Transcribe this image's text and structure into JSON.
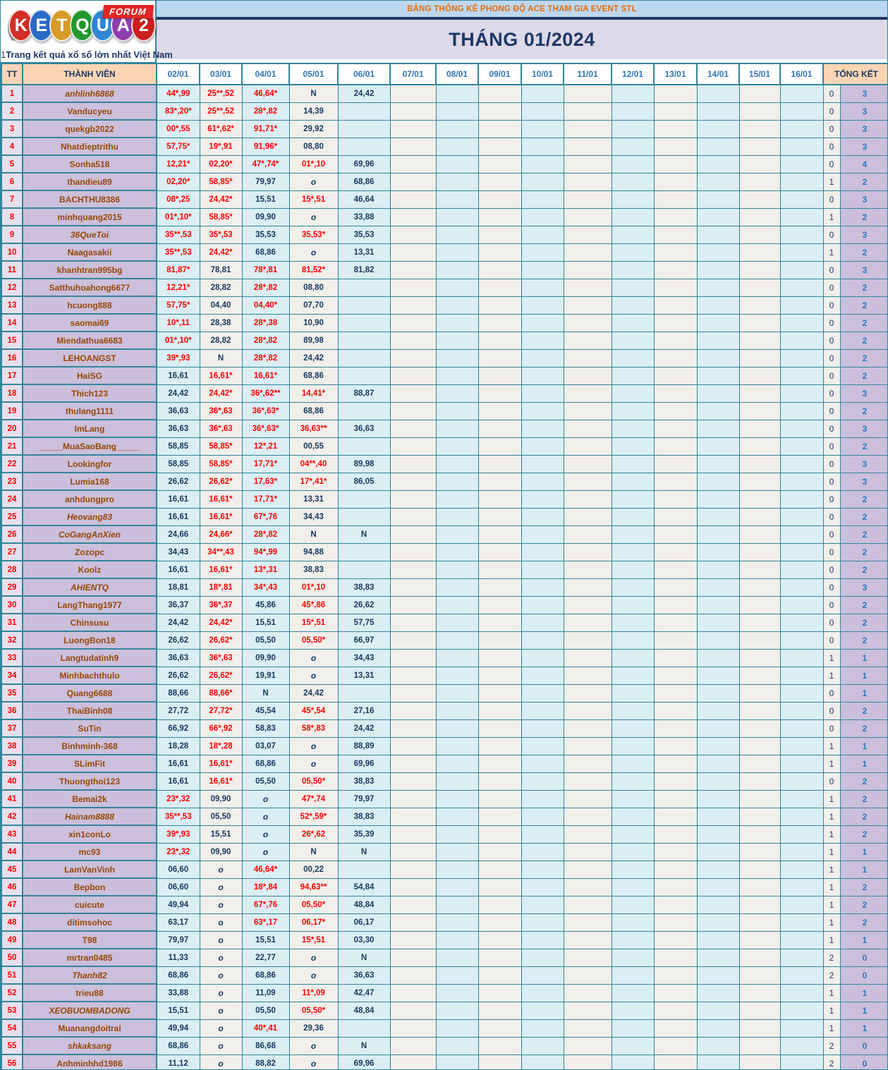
{
  "logo": {
    "letters": [
      {
        "ch": "K",
        "color": "#d22d26"
      },
      {
        "ch": "E",
        "color": "#2b6bc8"
      },
      {
        "ch": "T",
        "color": "#d79a28"
      },
      {
        "ch": "Q",
        "color": "#23982f"
      },
      {
        "ch": "U",
        "color": "#2f86d2"
      },
      {
        "ch": "A",
        "color": "#8e3fae"
      },
      {
        "ch": "2",
        "color": "#cc1f1f"
      }
    ],
    "badge": "FORUM",
    "tagline_prefix": "1",
    "tagline": "Trang kết quả xổ số lớn nhất Việt Nam"
  },
  "header": {
    "banner_title": "BẢNG THỐNG KÊ PHONG ĐỘ ACE THAM GIA EVENT STL",
    "month_title": "THÁNG 01/2024"
  },
  "columns": {
    "tt_label": "TT",
    "member_label": "THÀNH VIÊN",
    "dates": [
      "02/01",
      "03/01",
      "04/01",
      "05/01",
      "06/01",
      "07/01",
      "08/01",
      "09/01",
      "10/01",
      "11/01",
      "12/01",
      "13/01",
      "14/01",
      "15/01",
      "16/01"
    ],
    "total_label": "TỔNG KẾT"
  },
  "colors": {
    "border_teal": "#31859C",
    "banner_bg": "#BDD7EE",
    "banner_text": "#E36C0A",
    "navy": "#17375E",
    "red": "#FF0000",
    "name_bg": "#CBBFDB",
    "tt_bg": "#E5E0EC",
    "cell_blue": "#DAEEF3",
    "cell_ivory": "#F0EFEA",
    "peach": "#FCD5B4",
    "member_text": "#974706",
    "total_blue": "#2E75B6"
  },
  "rows": [
    [
      "1",
      "anhlinh6868",
      1,
      [
        "r|44*,99",
        "r|25**,52",
        "r|46,64*",
        "d|N",
        "d|24,42"
      ],
      [
        "0",
        "3"
      ]
    ],
    [
      "2",
      "Vanducyeu",
      0,
      [
        "r|83*,20*",
        "r|25**,52",
        "r|28*,82",
        "d|14,39",
        ""
      ],
      [
        "0",
        "3"
      ]
    ],
    [
      "3",
      "quekgb2022",
      0,
      [
        "r|00*,55",
        "r|61*,62*",
        "r|91,71*",
        "d|29,92",
        ""
      ],
      [
        "0",
        "3"
      ]
    ],
    [
      "4",
      "Nhatdieptrithu",
      0,
      [
        "r|57,75*",
        "r|19*,91",
        "r|91,96*",
        "d|08,80",
        ""
      ],
      [
        "0",
        "3"
      ]
    ],
    [
      "5",
      "Sonha518",
      0,
      [
        "r|12,21*",
        "r|02,20*",
        "r|47*,74*",
        "r|01*,10",
        "d|69,96"
      ],
      [
        "0",
        "4"
      ]
    ],
    [
      "6",
      "thandieu89",
      0,
      [
        "r|02,20*",
        "r|58,85*",
        "d|79,97",
        "i|o",
        "d|68,86"
      ],
      [
        "1",
        "2"
      ]
    ],
    [
      "7",
      "BACHTHU8386",
      0,
      [
        "r|08*,25",
        "r|24,42*",
        "d|15,51",
        "r|15*,51",
        "d|46,64"
      ],
      [
        "0",
        "3"
      ]
    ],
    [
      "8",
      "minhquang2015",
      0,
      [
        "r|01*,10*",
        "r|58,85*",
        "d|09,90",
        "i|o",
        "d|33,88"
      ],
      [
        "1",
        "2"
      ]
    ],
    [
      "9",
      "36QueToi",
      1,
      [
        "r|35**,53",
        "r|35*,53",
        "d|35,53",
        "r|35,53*",
        "d|35,53"
      ],
      [
        "0",
        "3"
      ]
    ],
    [
      "10",
      "Naagasakii",
      0,
      [
        "r|35**,53",
        "r|24,42*",
        "d|68,86",
        "i|o",
        "d|13,31"
      ],
      [
        "1",
        "2"
      ]
    ],
    [
      "11",
      "khanhtran995bg",
      0,
      [
        "r|81,87*",
        "d|78,81",
        "r|78*,81",
        "r|81,52*",
        "d|81,82"
      ],
      [
        "0",
        "3"
      ]
    ],
    [
      "12",
      "Satthuhoahong6677",
      0,
      [
        "r|12,21*",
        "d|28,82",
        "r|28*,82",
        "d|08,80",
        ""
      ],
      [
        "0",
        "2"
      ]
    ],
    [
      "13",
      "hcuong888",
      0,
      [
        "r|57,75*",
        "d|04,40",
        "r|04,40*",
        "d|07,70",
        ""
      ],
      [
        "0",
        "2"
      ]
    ],
    [
      "14",
      "saomai69",
      0,
      [
        "r|10*,11",
        "d|28,38",
        "r|28*,38",
        "d|10,90",
        ""
      ],
      [
        "0",
        "2"
      ]
    ],
    [
      "15",
      "Miendathua6683",
      0,
      [
        "r|01*,10*",
        "d|28,82",
        "r|28*,82",
        "d|89,98",
        ""
      ],
      [
        "0",
        "2"
      ]
    ],
    [
      "16",
      "LEHOANGST",
      0,
      [
        "r|39*,93",
        "d|N",
        "r|28*,82",
        "d|24,42",
        ""
      ],
      [
        "0",
        "2"
      ]
    ],
    [
      "17",
      "HaiSG",
      0,
      [
        "d|16,61",
        "r|16,61*",
        "r|16,61*",
        "d|68,86",
        ""
      ],
      [
        "0",
        "2"
      ]
    ],
    [
      "18",
      "Thich123",
      0,
      [
        "d|24,42",
        "r|24,42*",
        "r|36*,62**",
        "r|14,41*",
        "d|88,87"
      ],
      [
        "0",
        "3"
      ]
    ],
    [
      "19",
      "thulang1111",
      0,
      [
        "d|36,63",
        "r|36*,63",
        "r|36*,63*",
        "d|68,86",
        ""
      ],
      [
        "0",
        "2"
      ]
    ],
    [
      "20",
      "ImLang",
      0,
      [
        "d|36,63",
        "r|36*,63",
        "r|36*,63*",
        "r|36,63**",
        "d|36,63"
      ],
      [
        "0",
        "3"
      ]
    ],
    [
      "21",
      "_____MuaSaoBang_____",
      0,
      [
        "d|58,85",
        "r|58,85*",
        "r|12*,21",
        "d|00,55",
        ""
      ],
      [
        "0",
        "2"
      ]
    ],
    [
      "22",
      "Lookingfor",
      0,
      [
        "d|58,85",
        "r|58,85*",
        "r|17,71*",
        "r|04**,40",
        "d|89,98"
      ],
      [
        "0",
        "3"
      ]
    ],
    [
      "23",
      "Lumia168",
      0,
      [
        "d|26,62",
        "r|26,62*",
        "r|17,63*",
        "r|17*,41*",
        "d|86,05"
      ],
      [
        "0",
        "3"
      ]
    ],
    [
      "24",
      "anhdungpro",
      0,
      [
        "d|16,61",
        "r|16,61*",
        "r|17,71*",
        "d|13,31",
        ""
      ],
      [
        "0",
        "2"
      ]
    ],
    [
      "25",
      "Heovang83",
      1,
      [
        "d|16,61",
        "r|16,61*",
        "r|67*,76",
        "d|34,43",
        ""
      ],
      [
        "0",
        "2"
      ]
    ],
    [
      "26",
      "CoGangAnXien",
      1,
      [
        "d|24,66",
        "r|24,66*",
        "r|28*,82",
        "d|N",
        "d|N"
      ],
      [
        "0",
        "2"
      ]
    ],
    [
      "27",
      "Zozopc",
      0,
      [
        "d|34,43",
        "r|34**,43",
        "r|94*,99",
        "d|94,88",
        ""
      ],
      [
        "0",
        "2"
      ]
    ],
    [
      "28",
      "Koolz",
      0,
      [
        "d|16,61",
        "r|16,61*",
        "r|13*,31",
        "d|38,83",
        ""
      ],
      [
        "0",
        "2"
      ]
    ],
    [
      "29",
      "AHIENTQ",
      1,
      [
        "d|18,81",
        "r|18*,81",
        "r|34*,43",
        "r|01*,10",
        "d|38,83"
      ],
      [
        "0",
        "3"
      ]
    ],
    [
      "30",
      "LangThang1977",
      0,
      [
        "d|36,37",
        "r|36*,37",
        "d|45,86",
        "r|45*,86",
        "d|26,62"
      ],
      [
        "0",
        "2"
      ]
    ],
    [
      "31",
      "Chinsusu",
      0,
      [
        "d|24,42",
        "r|24,42*",
        "d|15,51",
        "r|15*,51",
        "d|57,75"
      ],
      [
        "0",
        "2"
      ]
    ],
    [
      "32",
      "LuongBon18",
      0,
      [
        "d|26,62",
        "r|26,62*",
        "d|05,50",
        "r|05,50*",
        "d|66,97"
      ],
      [
        "0",
        "2"
      ]
    ],
    [
      "33",
      "Langtudatinh9",
      0,
      [
        "d|36,63",
        "r|36*,63",
        "d|09,90",
        "i|o",
        "d|34,43"
      ],
      [
        "1",
        "1"
      ]
    ],
    [
      "34",
      "Minhbachthulo",
      0,
      [
        "d|26,62",
        "r|26,62*",
        "d|19,91",
        "i|o",
        "d|13,31"
      ],
      [
        "1",
        "1"
      ]
    ],
    [
      "35",
      "Quang6688",
      0,
      [
        "d|88,66",
        "r|88,66*",
        "d|N",
        "d|24,42",
        ""
      ],
      [
        "0",
        "1"
      ]
    ],
    [
      "36",
      "ThaiBinh08",
      0,
      [
        "d|27,72",
        "r|27,72*",
        "d|45,54",
        "r|45*,54",
        "d|27,16"
      ],
      [
        "0",
        "2"
      ]
    ],
    [
      "37",
      "SuTin",
      0,
      [
        "d|66,92",
        "r|66*,92",
        "d|58,83",
        "r|58*,83",
        "d|24,42"
      ],
      [
        "0",
        "2"
      ]
    ],
    [
      "38",
      "Binhminh-368",
      0,
      [
        "d|18,28",
        "r|18*,28",
        "d|03,07",
        "i|o",
        "d|88,89"
      ],
      [
        "1",
        "1"
      ]
    ],
    [
      "39",
      "SLimFit",
      0,
      [
        "d|16,61",
        "r|16,61*",
        "d|68,86",
        "i|o",
        "d|69,96"
      ],
      [
        "1",
        "1"
      ]
    ],
    [
      "40",
      "Thuongthoi123",
      0,
      [
        "d|16,61",
        "r|16,61*",
        "d|05,50",
        "r|05,50*",
        "d|38,83"
      ],
      [
        "0",
        "2"
      ]
    ],
    [
      "41",
      "Bemai2k",
      0,
      [
        "r|23*,32",
        "d|09,90",
        "i|o",
        "r|47*,74",
        "d|79,97"
      ],
      [
        "1",
        "2"
      ]
    ],
    [
      "42",
      "Hainam8888",
      1,
      [
        "r|35**,53",
        "d|05,50",
        "i|o",
        "r|52*,59*",
        "d|38,83"
      ],
      [
        "1",
        "2"
      ]
    ],
    [
      "43",
      "xin1conLo",
      0,
      [
        "r|39*,93",
        "d|15,51",
        "i|o",
        "r|26*,62",
        "d|35,39"
      ],
      [
        "1",
        "2"
      ]
    ],
    [
      "44",
      "mc93",
      0,
      [
        "r|23*,32",
        "d|09,90",
        "i|o",
        "d|N",
        "d|N"
      ],
      [
        "1",
        "1"
      ]
    ],
    [
      "45",
      "LamVanVinh",
      0,
      [
        "d|06,60",
        "i|o",
        "r|46,64*",
        "d|00,22",
        ""
      ],
      [
        "1",
        "1"
      ]
    ],
    [
      "46",
      "Bepbon",
      0,
      [
        "d|06,60",
        "i|o",
        "r|18*,84",
        "r|94,63**",
        "d|54,84"
      ],
      [
        "1",
        "2"
      ]
    ],
    [
      "47",
      "cuicute",
      0,
      [
        "d|49,94",
        "i|o",
        "r|67*,76",
        "r|05,50*",
        "d|48,84"
      ],
      [
        "1",
        "2"
      ]
    ],
    [
      "48",
      "ditimsohoc",
      0,
      [
        "d|63,17",
        "i|o",
        "r|63*,17",
        "r|06,17*",
        "d|06,17"
      ],
      [
        "1",
        "2"
      ]
    ],
    [
      "49",
      "T98",
      0,
      [
        "d|79,97",
        "i|o",
        "d|15,51",
        "r|15*,51",
        "d|03,30"
      ],
      [
        "1",
        "1"
      ]
    ],
    [
      "50",
      "mrtran0485",
      0,
      [
        "d|11,33",
        "i|o",
        "d|22,77",
        "i|o",
        "d|N"
      ],
      [
        "2",
        "0"
      ]
    ],
    [
      "51",
      "Thanh82",
      1,
      [
        "d|68,86",
        "i|o",
        "d|68,86",
        "i|o",
        "d|36,63"
      ],
      [
        "2",
        "0"
      ]
    ],
    [
      "52",
      "trieu88",
      0,
      [
        "d|33,88",
        "i|o",
        "d|11,09",
        "r|11*,09",
        "d|42,47"
      ],
      [
        "1",
        "1"
      ]
    ],
    [
      "53",
      "XEOBUOMBADONG",
      1,
      [
        "d|15,51",
        "i|o",
        "d|05,50",
        "r|05,50*",
        "d|48,84"
      ],
      [
        "1",
        "1"
      ]
    ],
    [
      "54",
      "Muanangdoitrai",
      0,
      [
        "d|49,94",
        "i|o",
        "r|40*,41",
        "d|29,36",
        ""
      ],
      [
        "1",
        "1"
      ]
    ],
    [
      "55",
      "shkaksang",
      1,
      [
        "d|68,86",
        "i|o",
        "d|86,68",
        "i|o",
        "d|N"
      ],
      [
        "2",
        "0"
      ]
    ],
    [
      "56",
      "Anhminhhd1986",
      0,
      [
        "d|11,12",
        "i|o",
        "d|88,82",
        "i|o",
        "d|69,96"
      ],
      [
        "2",
        "0"
      ]
    ]
  ]
}
